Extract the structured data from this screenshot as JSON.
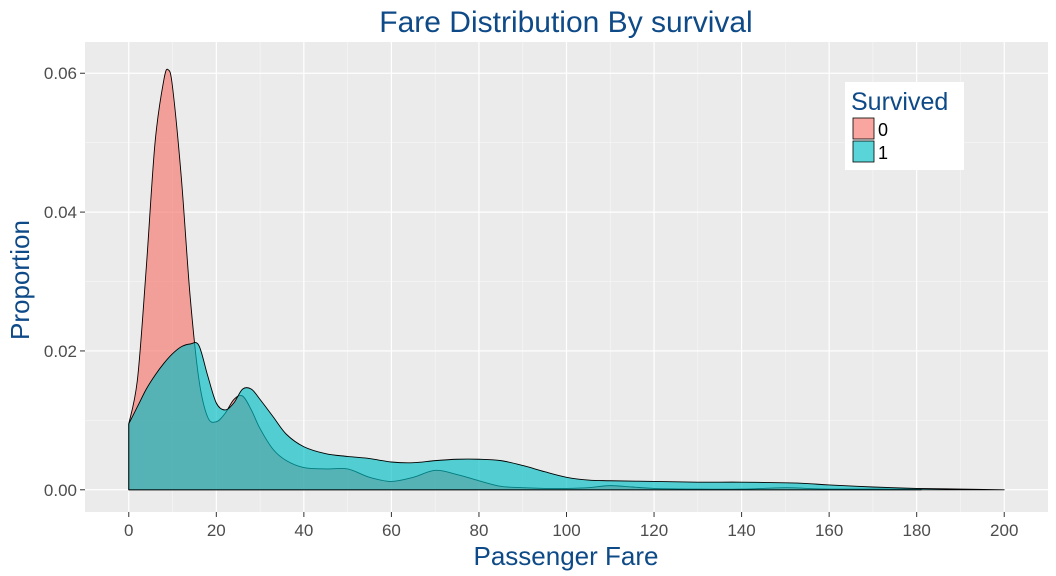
{
  "chart_data": {
    "type": "area",
    "title": "Fare Distribution By survival",
    "xlabel": "Passenger Fare",
    "ylabel": "Proportion",
    "xlim": [
      -10,
      210
    ],
    "ylim": [
      -0.0032,
      0.0645
    ],
    "x_ticks": [
      0,
      20,
      40,
      60,
      80,
      100,
      120,
      140,
      160,
      180,
      200
    ],
    "x_tick_labels": [
      "0",
      "20",
      "40",
      "60",
      "80",
      "100",
      "120",
      "140",
      "160",
      "180",
      "200"
    ],
    "y_ticks": [
      0,
      0.02,
      0.04,
      0.06
    ],
    "y_tick_labels": [
      "0.00",
      "0.02",
      "0.04",
      "0.06"
    ],
    "grid": true,
    "background": "#ebebeb",
    "legend": {
      "title": "Survived",
      "position": "top-right"
    },
    "series": [
      {
        "name": "0",
        "color": "#f8766d",
        "x": [
          0,
          2,
          4,
          6,
          8,
          9,
          10,
          12,
          14,
          16,
          18,
          20,
          22,
          24,
          26,
          28,
          30,
          33,
          36,
          40,
          45,
          50,
          55,
          60,
          65,
          70,
          75,
          80,
          85,
          90,
          95,
          100,
          105,
          110,
          115,
          120,
          130,
          140,
          150,
          155,
          160,
          170,
          180,
          181
        ],
        "values": [
          0.0095,
          0.016,
          0.032,
          0.05,
          0.059,
          0.0605,
          0.058,
          0.045,
          0.028,
          0.016,
          0.0105,
          0.0098,
          0.011,
          0.013,
          0.0135,
          0.0115,
          0.0088,
          0.0058,
          0.0042,
          0.0032,
          0.003,
          0.003,
          0.0018,
          0.0012,
          0.0018,
          0.0028,
          0.0022,
          0.0013,
          0.0005,
          0.0003,
          0.0002,
          0.0002,
          0.0003,
          0.0006,
          0.0004,
          0.0002,
          0.0001,
          0.0001,
          0.0003,
          0.0002,
          0.0001,
          0.0001,
          0.0001,
          0
        ]
      },
      {
        "name": "1",
        "color": "#00bfc4",
        "x": [
          0,
          2,
          4,
          6,
          8,
          10,
          12,
          14,
          16,
          18,
          20,
          22,
          24,
          26,
          28,
          30,
          33,
          36,
          40,
          45,
          50,
          55,
          60,
          65,
          70,
          75,
          80,
          85,
          90,
          95,
          100,
          105,
          110,
          120,
          130,
          140,
          150,
          155,
          160,
          170,
          180,
          190,
          200
        ],
        "values": [
          0.0095,
          0.012,
          0.0145,
          0.0165,
          0.0182,
          0.0196,
          0.0206,
          0.021,
          0.0208,
          0.0165,
          0.0125,
          0.0115,
          0.0125,
          0.0145,
          0.0145,
          0.013,
          0.0105,
          0.008,
          0.0062,
          0.0052,
          0.0048,
          0.0045,
          0.004,
          0.0039,
          0.0042,
          0.0044,
          0.0044,
          0.0042,
          0.0035,
          0.0026,
          0.0018,
          0.0014,
          0.0013,
          0.0012,
          0.0011,
          0.0011,
          0.001,
          0.0009,
          0.0007,
          0.0004,
          0.0002,
          0.0001,
          0
        ]
      }
    ]
  }
}
